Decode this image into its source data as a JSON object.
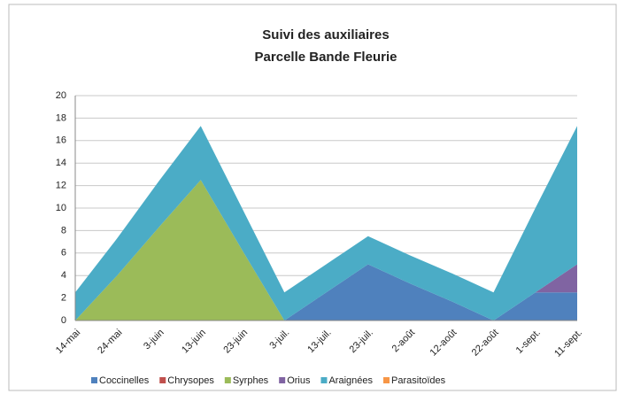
{
  "chart_data": {
    "type": "stacked_area",
    "title": "Suivi des auxiliaires",
    "subtitle": "Parcelle Bande Fleurie",
    "categories": [
      "14-mai",
      "24-mai",
      "3-juin",
      "13-juin",
      "23-juin",
      "3-juil.",
      "13-juil.",
      "23-juil.",
      "2-août",
      "12-août",
      "22-août",
      "1-sept.",
      "11-sept."
    ],
    "series": [
      {
        "name": "Coccinelles",
        "color": "#4f81bd",
        "values": [
          0,
          0,
          0,
          0,
          0,
          0,
          2.5,
          5,
          3.3,
          1.7,
          0,
          2.5,
          2.5
        ]
      },
      {
        "name": "Chrysopes",
        "color": "#c0504d",
        "values": [
          0,
          0,
          0,
          0,
          0,
          0,
          0,
          0,
          0,
          0,
          0,
          0,
          0
        ]
      },
      {
        "name": "Syrphes",
        "color": "#9bbb59",
        "values": [
          0,
          4,
          8.3,
          12.5,
          6.2,
          0,
          0,
          0,
          0,
          0,
          0,
          0,
          0
        ]
      },
      {
        "name": "Orius",
        "color": "#8064a2",
        "values": [
          0,
          0,
          0,
          0,
          0,
          0,
          0,
          0,
          0,
          0,
          0,
          0,
          2.5
        ]
      },
      {
        "name": "Araignées",
        "color": "#4bacc6",
        "values": [
          2.5,
          3.3,
          4.1,
          4.8,
          3.7,
          2.5,
          2.5,
          2.5,
          2.5,
          2.5,
          2.5,
          7.5,
          12.3
        ]
      },
      {
        "name": "Parasitoïdes",
        "color": "#f79646",
        "values": [
          0,
          0,
          0,
          0,
          0,
          0,
          0,
          0,
          0,
          0,
          0,
          0,
          0
        ]
      }
    ],
    "ylim": [
      0,
      20
    ],
    "yticks": [
      0,
      2,
      4,
      6,
      8,
      10,
      12,
      14,
      16,
      18,
      20
    ],
    "grid": true,
    "legend": "bottom"
  }
}
